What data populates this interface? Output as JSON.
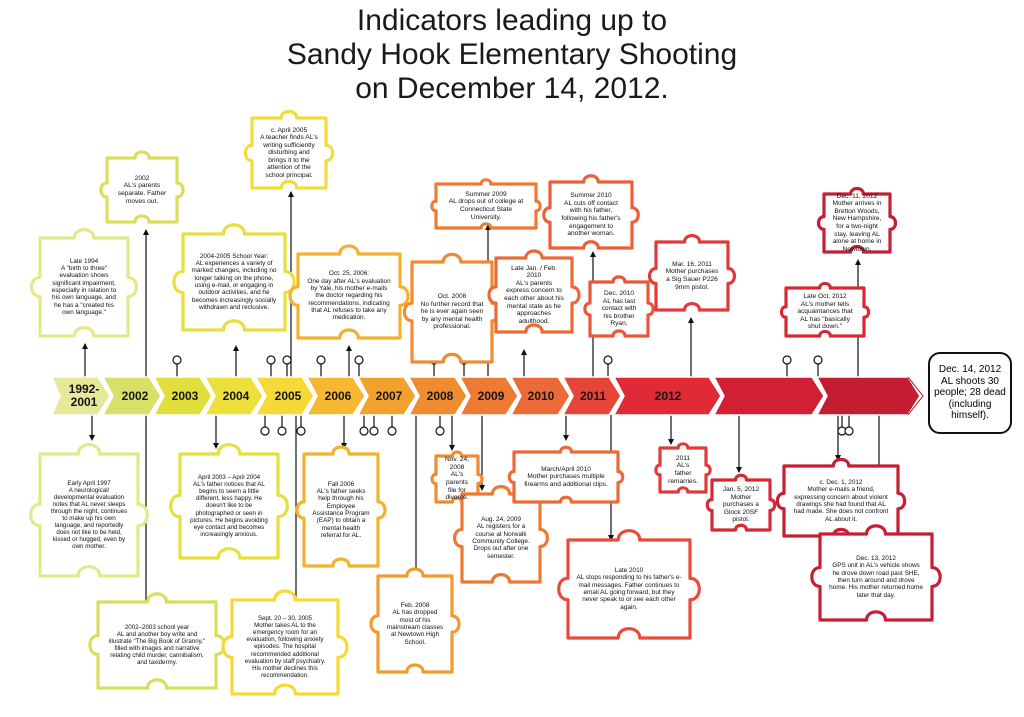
{
  "title_lines": [
    "Indicators leading up to",
    "Sandy Hook Elementary Shooting",
    "on December 14, 2012."
  ],
  "segments": [
    {
      "label": "1992-\n2001",
      "color": "#e6e89a"
    },
    {
      "label": "2002",
      "color": "#d8e067"
    },
    {
      "label": "2003",
      "color": "#e0df3b"
    },
    {
      "label": "2004",
      "color": "#ece13b"
    },
    {
      "label": "2005",
      "color": "#f6d936"
    },
    {
      "label": "2006",
      "color": "#f6b830"
    },
    {
      "label": "2007",
      "color": "#f3a12e"
    },
    {
      "label": "2008",
      "color": "#f08c30"
    },
    {
      "label": "2009",
      "color": "#ee7a33"
    },
    {
      "label": "2010",
      "color": "#ec6a37"
    },
    {
      "label": "2011",
      "color": "#e8453a"
    },
    {
      "label": "2012",
      "color": "#e02b37"
    },
    {
      "label": "",
      "color": "#d21f34"
    },
    {
      "label": "",
      "color": "#c41d32"
    }
  ],
  "events": [
    {
      "text": "Late 1994\nA \"birth to three\" evaluation shows significant impairment, especially in relation to his own language, and he has a \"created his own language.\"",
      "side": "above",
      "color": "#e3e98b",
      "anchor": "1992-2001"
    },
    {
      "text": "2002\nAL's parents separate. Father moves out.",
      "side": "above",
      "color": "#d8df5a",
      "anchor": "2002"
    },
    {
      "text": "2004-2005 School Year:\nAL experiences a variety of marked changes, including no longer talking on the phone, using e-mail, or engaging in outdoor activities, and he becomes increasingly socially withdrawn and reclusive.",
      "side": "above",
      "color": "#e6df3c",
      "anchor": "2004"
    },
    {
      "text": "c. April 2005\nA teacher finds AL's writing sufficiently disturbing and brings it to the attention of the school principal.",
      "side": "above",
      "color": "#f2dc3a",
      "anchor": "2005"
    },
    {
      "text": "Oct. 25, 2006:\nOne day after AL's evaluation by Yale, his mother e-mails the doctor regarding his recommendations, indicating that AL refuses to take any medication.",
      "side": "above",
      "color": "#f3b12e",
      "anchor": "2006"
    },
    {
      "text": "Oct. 2008\nNo further record that he is ever again seen by any mental health professional.",
      "side": "above",
      "color": "#f08b31",
      "anchor": "2008"
    },
    {
      "text": "Summer 2009\nAL drops out of college at Connecticut State University.",
      "side": "above",
      "color": "#ef7832",
      "anchor": "2009"
    },
    {
      "text": "Late Jan. / Feb. 2010\nAL's parents express concern to each other about his mental state as he approaches adulthood.",
      "side": "above",
      "color": "#ec6a37",
      "anchor": "2010"
    },
    {
      "text": "Summer 2010\nAL cuts off contact with his father, following his father's engagement to another woman.",
      "side": "above",
      "color": "#ec5f38",
      "anchor": "2010"
    },
    {
      "text": "Dec. 2010\nAL has last contact with his brother Ryan.",
      "side": "above",
      "color": "#ea5639",
      "anchor": "2010"
    },
    {
      "text": "Mar. 16, 2011\nMother purchases a Sig Sauer P226 9mm pistol.",
      "side": "above",
      "color": "#e23a3a",
      "anchor": "2011"
    },
    {
      "text": "Late Oct. 2012\nAL's mother tells acquaintances that AL has \"basically shut down.\"",
      "side": "above",
      "color": "#d42a35",
      "anchor": "2012"
    },
    {
      "text": "Dec. 11, 2012\nMother arrives in Bretton Woods, New Hampshire, for a two-night stay, leaving AL alone at home in Newtown.",
      "side": "above",
      "color": "#c41f33",
      "anchor": "2012"
    },
    {
      "text": "Early April 1997\nA neurological/ developmental evaluation notes that AL never sleeps through the night, continues to make up his own language, and reportedly does not like to be held, kissed or hugged, even by own mother.",
      "side": "below",
      "color": "#e3e98b",
      "anchor": "1992-2001"
    },
    {
      "text": "2002–2003 school year\nAL and another boy write and illustrate \"The Big Book of Granny,\" filled with images and narrative relating child murder, cannibalism, and taxidermy.",
      "side": "below",
      "color": "#d8df5a",
      "anchor": "2002"
    },
    {
      "text": "April 2003 – April 2004\nAL's father notices that AL begins to seem a little different, less happy. He doesn't like to be photographed or seen in pictures. He begins avoiding eye contact and becomes increasingly anxious.",
      "side": "below",
      "color": "#e6df3c",
      "anchor": "2003"
    },
    {
      "text": "Sept. 20 – 30, 2005\nMother takes AL to the emergency room for an evaluation, following anxiety episodes. The hospital recommended additional evaluation by staff psychiatry. His mother declines this recommendation.",
      "side": "below",
      "color": "#f6d936",
      "anchor": "2005"
    },
    {
      "text": "Fall 2006\nAL's father seeks help through his Employee Assistance Program (EAP) to obtain a mental health referral for AL.",
      "side": "below",
      "color": "#f3b12e",
      "anchor": "2006"
    },
    {
      "text": "Feb. 2008\nAL has dropped most of his mainstream classes at Newtown High School.",
      "side": "below",
      "color": "#f39a2f",
      "anchor": "2008"
    },
    {
      "text": "Nov. 24, 2008\nAL's parents file for divorce.",
      "side": "below",
      "color": "#f08b31",
      "anchor": "2008"
    },
    {
      "text": "Aug. 24, 2009\nAL registers for a course at Norwalk Community College. Drops out after one semester.",
      "side": "below",
      "color": "#ef7832",
      "anchor": "2009"
    },
    {
      "text": "March/April 2010\nMother purchases multiple firearms and additional clips.",
      "side": "below",
      "color": "#ec6a37",
      "anchor": "2010"
    },
    {
      "text": "Late 2010\nAL stops responding to his father's e-mail messages. Father continues to email AL going forward, but they never speak to or see each other again.",
      "side": "below",
      "color": "#e84b3a",
      "anchor": "2010"
    },
    {
      "text": "2011\nAL's father remarries.",
      "side": "below",
      "color": "#e23a3a",
      "anchor": "2011"
    },
    {
      "text": "Jan. 5, 2012\nMother purchases a Glock 20SF pistol.",
      "side": "below",
      "color": "#d42a35",
      "anchor": "2012"
    },
    {
      "text": "c. Dec. 1, 2012\nMother e-mails a friend, expressing concern about violent drawings she had found that AL had made. She does not confront AL about it.",
      "side": "below",
      "color": "#c41f33",
      "anchor": "2012"
    },
    {
      "text": "Dec. 13, 2012\nGPS unit in AL's vehicle shows he drove down road past SHE, then turn around and drove home. His mother returned home later that day.",
      "side": "below",
      "color": "#c41f33",
      "anchor": "2012"
    }
  ],
  "final_event": {
    "text": "Dec. 14, 2012\nAL shoots 30 people; 28 dead (including himself)."
  }
}
